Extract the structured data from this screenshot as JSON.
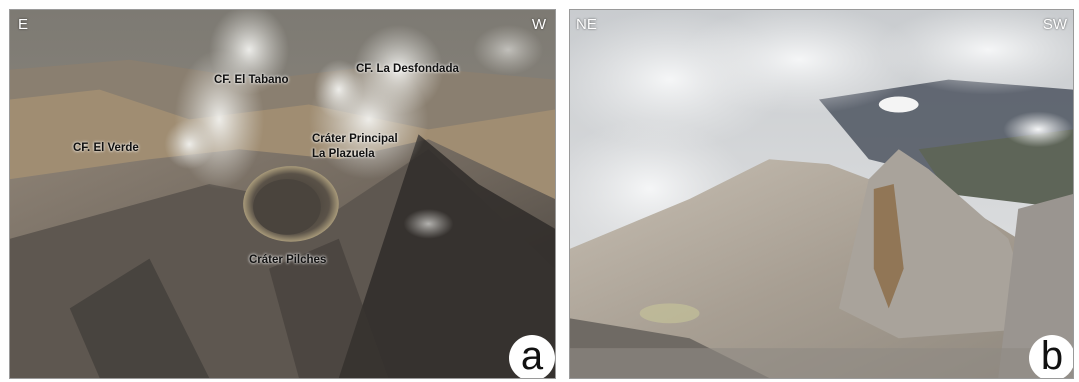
{
  "panels": {
    "a": {
      "letter": "a",
      "left_direction": "E",
      "right_direction": "W",
      "labels": {
        "tabano": "CF. El Tabano",
        "desfondada": "CF. La Desfondada",
        "verde": "CF. El Verde",
        "principal_line1": "Cráter Principal",
        "principal_line2": "La Plazuela",
        "pilches": "Cráter Pilches"
      }
    },
    "b": {
      "letter": "b",
      "left_direction": "NE",
      "right_direction": "SW"
    }
  }
}
